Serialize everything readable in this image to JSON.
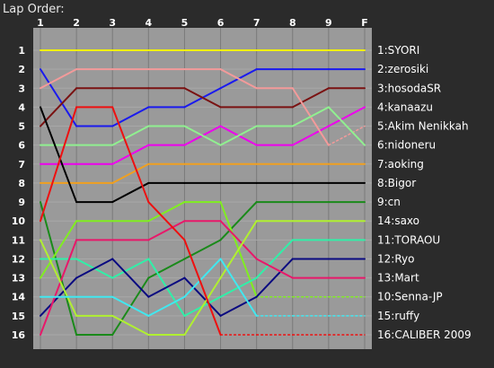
{
  "chart_data": {
    "type": "line",
    "title": "Lap Order:",
    "x": [
      "1",
      "2",
      "3",
      "4",
      "5",
      "6",
      "7",
      "8",
      "9",
      "F"
    ],
    "y_ticks": [
      1,
      2,
      3,
      4,
      5,
      6,
      7,
      8,
      9,
      10,
      11,
      12,
      13,
      14,
      15,
      16
    ],
    "ylim": [
      1,
      16
    ],
    "y_reversed": true,
    "grid": true,
    "legend_placement": "right",
    "background": "#9a9a9a",
    "series": [
      {
        "name": "1:SYORI",
        "color": "#f0f000",
        "values": [
          1,
          1,
          1,
          1,
          1,
          1,
          1,
          1,
          1,
          1
        ],
        "dashed_from": null
      },
      {
        "name": "2:zerosiki",
        "color": "#1a1aee",
        "values": [
          2,
          5,
          5,
          4,
          4,
          3,
          2,
          2,
          2,
          2
        ],
        "dashed_from": null
      },
      {
        "name": "3:hosodaSR",
        "color": "#7a1212",
        "values": [
          5,
          3,
          3,
          3,
          3,
          4,
          4,
          4,
          3,
          3
        ],
        "dashed_from": null
      },
      {
        "name": "4:kanaazu",
        "color": "#ee00ee",
        "values": [
          7,
          7,
          7,
          6,
          6,
          5,
          6,
          6,
          5,
          4
        ],
        "dashed_from": null
      },
      {
        "name": "5:Akim Nenikkah",
        "color": "#f39a9a",
        "values": [
          3,
          2,
          2,
          2,
          2,
          2,
          3,
          3,
          6,
          5
        ],
        "dashed_from": 8
      },
      {
        "name": "6:nidoneru",
        "color": "#90f090",
        "values": [
          6,
          6,
          6,
          5,
          5,
          6,
          5,
          5,
          4,
          6
        ],
        "dashed_from": null
      },
      {
        "name": "7:aoking",
        "color": "#f0a020",
        "values": [
          8,
          8,
          8,
          7,
          7,
          7,
          7,
          7,
          7,
          7
        ],
        "dashed_from": null
      },
      {
        "name": "8:Bigor",
        "color": "#000000",
        "values": [
          4,
          9,
          9,
          8,
          8,
          8,
          8,
          8,
          8,
          8
        ],
        "dashed_from": null
      },
      {
        "name": "9:cn",
        "color": "#1a8a1a",
        "values": [
          9,
          16,
          16,
          13,
          12,
          11,
          9,
          9,
          9,
          9
        ],
        "dashed_from": null
      },
      {
        "name": "10:Senna-JP",
        "color": "#80ee20",
        "values": [
          13,
          10,
          10,
          10,
          9,
          9,
          14,
          14,
          14,
          14
        ],
        "dashed_from": 6
      },
      {
        "name": "11:TORAOU",
        "color": "#30f0a8",
        "values": [
          12,
          12,
          13,
          12,
          15,
          14,
          13,
          11,
          11,
          11
        ],
        "dashed_from": null
      },
      {
        "name": "12:Ryo",
        "color": "#0a0a80",
        "values": [
          15,
          13,
          12,
          14,
          13,
          15,
          14,
          12,
          12,
          12
        ],
        "dashed_from": null
      },
      {
        "name": "13:Mart",
        "color": "#e8186a",
        "values": [
          16,
          11,
          11,
          11,
          10,
          10,
          12,
          13,
          13,
          13
        ],
        "dashed_from": null
      },
      {
        "name": "14:saxo",
        "color": "#b0f030",
        "values": [
          11,
          15,
          15,
          16,
          16,
          13,
          10,
          10,
          10,
          10
        ],
        "dashed_from": null
      },
      {
        "name": "15:ruffy",
        "color": "#40e8f0",
        "values": [
          14,
          14,
          14,
          15,
          14,
          12,
          15,
          15,
          15,
          15
        ],
        "dashed_from": 6
      },
      {
        "name": "16:CALIBER 2009",
        "color": "#ee1010",
        "values": [
          10,
          4,
          4,
          9,
          11,
          16,
          16,
          16,
          16,
          16
        ],
        "dashed_from": 5
      }
    ]
  }
}
